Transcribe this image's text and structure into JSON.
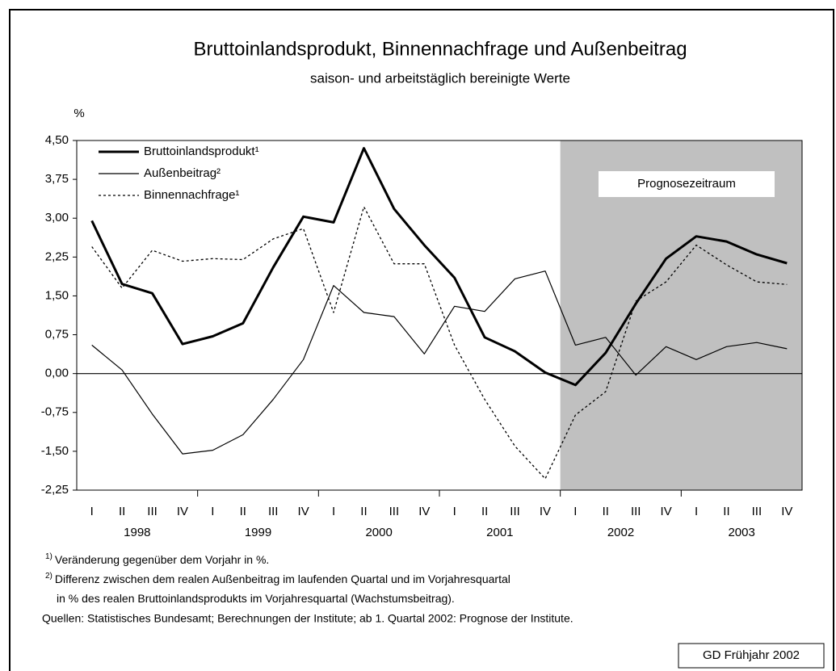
{
  "chart_data": {
    "type": "line",
    "title": "Bruttoinlandsprodukt, Binnennachfrage und Außenbeitrag",
    "subtitle": "saison- und arbeitstäglich bereinigte Werte",
    "y_axis_label": "%",
    "categories": [
      "I",
      "II",
      "III",
      "IV",
      "I",
      "II",
      "III",
      "IV",
      "I",
      "II",
      "III",
      "IV",
      "I",
      "II",
      "III",
      "IV",
      "I",
      "II",
      "III",
      "IV",
      "I",
      "II",
      "III",
      "IV"
    ],
    "years": [
      "1998",
      "1999",
      "2000",
      "2001",
      "2002",
      "2003"
    ],
    "forecast_from": "2002",
    "forecast_label": "Prognosezeitraum",
    "forecast_color": "#c0c0c0",
    "series": [
      {
        "name": "Bruttoinlandsprodukt¹",
        "color": "#000000",
        "style": "thick",
        "values": [
          2.95,
          1.73,
          1.55,
          0.57,
          0.72,
          0.97,
          2.05,
          3.03,
          2.92,
          4.35,
          3.18,
          2.48,
          1.85,
          0.7,
          0.43,
          0.02,
          -0.22,
          0.4,
          1.35,
          2.22,
          2.65,
          2.55,
          2.3,
          2.13
        ]
      },
      {
        "name": "Außenbeitrag²",
        "color": "#000000",
        "style": "thin",
        "values": [
          0.55,
          0.07,
          -0.78,
          -1.55,
          -1.48,
          -1.18,
          -0.5,
          0.27,
          1.7,
          1.18,
          1.1,
          0.38,
          1.3,
          1.2,
          1.83,
          1.98,
          0.55,
          0.7,
          -0.03,
          0.52,
          0.27,
          0.52,
          0.6,
          0.48
        ]
      },
      {
        "name": "Binnennachfrage¹",
        "color": "#000000",
        "style": "dotted",
        "values": [
          2.45,
          1.65,
          2.38,
          2.17,
          2.22,
          2.2,
          2.6,
          2.8,
          1.18,
          3.22,
          2.12,
          2.12,
          0.55,
          -0.5,
          -1.4,
          -2.03,
          -0.8,
          -0.35,
          1.4,
          1.77,
          2.48,
          2.1,
          1.77,
          1.72
        ]
      }
    ],
    "ylim": [
      -2.25,
      4.5
    ],
    "yticks": [
      {
        "value": -2.25,
        "label": "-2,25"
      },
      {
        "value": -1.5,
        "label": "-1,50"
      },
      {
        "value": -0.75,
        "label": "-0,75"
      },
      {
        "value": 0,
        "label": "0,00"
      },
      {
        "value": 0.75,
        "label": "0,75"
      },
      {
        "value": 1.5,
        "label": "1,50"
      },
      {
        "value": 2.25,
        "label": "2,25"
      },
      {
        "value": 3,
        "label": "3,00"
      },
      {
        "value": 3.75,
        "label": "3,75"
      },
      {
        "value": 4.5,
        "label": "4,50"
      }
    ],
    "footnotes": [
      {
        "mark": "1)",
        "text": "Veränderung gegenüber dem Vorjahr in %."
      },
      {
        "mark": "2)",
        "text": "Differenz zwischen dem realen Außenbeitrag im laufenden Quartal und im Vorjahresquartal"
      },
      {
        "mark": "",
        "text": "in % des realen Bruttoinlandsprodukts im Vorjahresquartal (Wachstumsbeitrag)."
      }
    ],
    "source": "Quellen: Statistisches Bundesamt; Berechnungen der Institute; ab 1. Quartal 2002: Prognose der Institute.",
    "stamp": "GD Frühjahr 2002"
  }
}
